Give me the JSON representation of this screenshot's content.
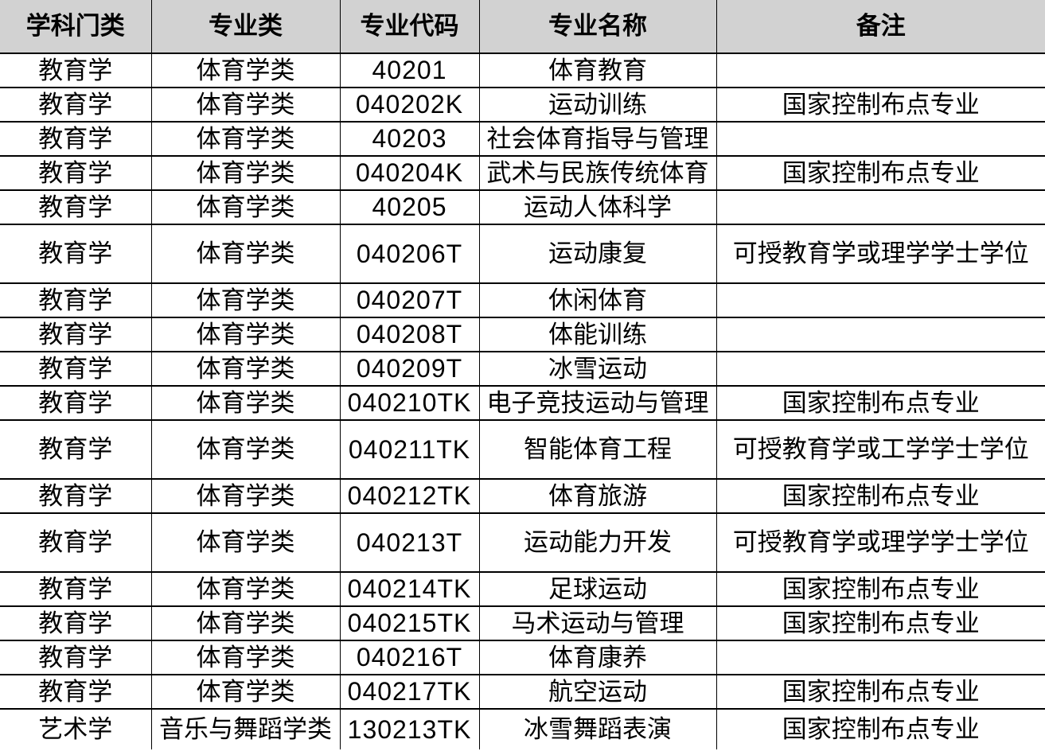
{
  "table": {
    "headers": [
      {
        "label": "学科门类"
      },
      {
        "label": "专业类"
      },
      {
        "label": "专业代码"
      },
      {
        "label": "专业名称"
      },
      {
        "label": "备注"
      }
    ],
    "rows": [
      {
        "cells": [
          "教育学",
          "体育学类",
          "40201",
          "体育教育",
          ""
        ]
      },
      {
        "cells": [
          "教育学",
          "体育学类",
          "040202K",
          "运动训练",
          "国家控制布点专业"
        ]
      },
      {
        "cells": [
          "教育学",
          "体育学类",
          "40203",
          "社会体育指导与管理",
          ""
        ]
      },
      {
        "cells": [
          "教育学",
          "体育学类",
          "040204K",
          "武术与民族传统体育",
          "国家控制布点专业"
        ]
      },
      {
        "cells": [
          "教育学",
          "体育学类",
          "40205",
          "运动人体科学",
          ""
        ]
      },
      {
        "cells": [
          "教育学",
          "体育学类",
          "040206T",
          "运动康复",
          "可授教育学或理学学士学位"
        ]
      },
      {
        "cells": [
          "教育学",
          "体育学类",
          "040207T",
          "休闲体育",
          ""
        ]
      },
      {
        "cells": [
          "教育学",
          "体育学类",
          "040208T",
          "体能训练",
          ""
        ]
      },
      {
        "cells": [
          "教育学",
          "体育学类",
          "040209T",
          "冰雪运动",
          ""
        ]
      },
      {
        "cells": [
          "教育学",
          "体育学类",
          "040210TK",
          "电子竞技运动与管理",
          "国家控制布点专业"
        ]
      },
      {
        "cells": [
          "教育学",
          "体育学类",
          "040211TK",
          "智能体育工程",
          "可授教育学或工学学士学位"
        ]
      },
      {
        "cells": [
          "教育学",
          "体育学类",
          "040212TK",
          "体育旅游",
          "国家控制布点专业"
        ]
      },
      {
        "cells": [
          "教育学",
          "体育学类",
          "040213T",
          "运动能力开发",
          "可授教育学或理学学士学位"
        ]
      },
      {
        "cells": [
          "教育学",
          "体育学类",
          "040214TK",
          "足球运动",
          "国家控制布点专业"
        ]
      },
      {
        "cells": [
          "教育学",
          "体育学类",
          "040215TK",
          "马术运动与管理",
          "国家控制布点专业"
        ]
      },
      {
        "cells": [
          "教育学",
          "体育学类",
          "040216T",
          "体育康养",
          ""
        ]
      },
      {
        "cells": [
          "教育学",
          "体育学类",
          "040217TK",
          "航空运动",
          "国家控制布点专业"
        ]
      },
      {
        "cells": [
          "艺术学",
          "音乐与舞蹈学类",
          "130213TK",
          "冰雪舞蹈表演",
          "国家控制布点专业"
        ]
      }
    ]
  },
  "colors": {
    "header_bg": "#d2d2d2",
    "border": "#000000",
    "text": "#000000"
  }
}
